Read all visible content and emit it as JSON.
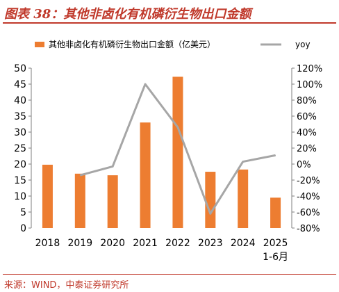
{
  "figure": {
    "title": "图表 38：其他非卤化有机磷衍生物出口金额",
    "source": "来源：WIND，中泰证券研究所"
  },
  "colors": {
    "bar": "#ED7D31",
    "line": "#A6A6A6",
    "accent": "#c0392b"
  },
  "chart_data": {
    "type": "bar",
    "categories": [
      "2018",
      "2019",
      "2020",
      "2021",
      "2022",
      "2023",
      "2024",
      "2025\n1-6月"
    ],
    "series": [
      {
        "name": "其他非卤化有机磷衍生物出口金额（亿美元）",
        "type": "bar",
        "axis": "left",
        "values": [
          19.8,
          17.0,
          16.5,
          33.0,
          47.3,
          17.6,
          18.3,
          9.5
        ]
      },
      {
        "name": "yoy",
        "type": "line",
        "axis": "right",
        "values": [
          null,
          -14,
          -3,
          100,
          46,
          -62,
          3,
          11
        ]
      }
    ],
    "left_axis": {
      "ticks": [
        "0",
        "5",
        "10",
        "15",
        "20",
        "25",
        "30",
        "35",
        "40",
        "45",
        "50"
      ],
      "range": [
        0,
        50
      ]
    },
    "right_axis": {
      "ticks": [
        "-80%",
        "-60%",
        "-40%",
        "-20%",
        "0%",
        "20%",
        "40%",
        "60%",
        "80%",
        "100%",
        "120%"
      ],
      "range": [
        -80,
        120
      ]
    },
    "legend_position": "top",
    "grid": false
  }
}
